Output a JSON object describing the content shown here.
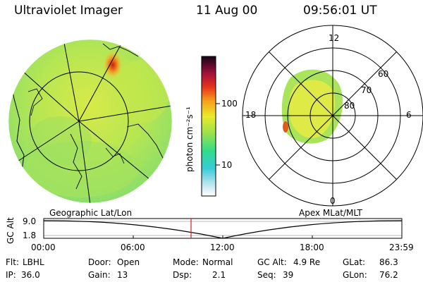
{
  "header": {
    "instrument": "Ultraviolet Imager",
    "date": "11 Aug 00",
    "time": "09:56:01 UT"
  },
  "colorbar": {
    "unit_label": "photon cm⁻²s⁻¹",
    "ticks": [
      "100",
      "10"
    ]
  },
  "left_panel": {
    "caption": "Geographic Lat/Lon"
  },
  "right_panel": {
    "caption": "Apex MLat/MLT",
    "mlt_labels": {
      "top": "12",
      "left": "18",
      "right": "6",
      "bottom": "0"
    },
    "lat_labels": [
      "60",
      "70",
      "80"
    ]
  },
  "altitude_strip": {
    "axis_label": "GC Alt",
    "y_ticks": [
      "9.0",
      "1.8"
    ],
    "time_ticks": [
      "00:00",
      "06:00",
      "12:00",
      "18:00",
      "23:59"
    ]
  },
  "params": {
    "flt_label": "Flt:",
    "flt_value": "LBHL",
    "ip_label": "IP:",
    "ip_value": "36.0",
    "door_label": "Door:",
    "door_value": "Open",
    "gain_label": "Gain:",
    "gain_value": "13",
    "mode_label": "Mode:",
    "mode_value": "Normal",
    "dsp_label": "Dsp:",
    "dsp_value": "2.1",
    "gcalt_label": "GC Alt:",
    "gcalt_value": "4.9 Re",
    "seq_label": "Seq:",
    "seq_value": "39",
    "glat_label": "GLat:",
    "glat_value": "86.3",
    "glon_label": "GLon:",
    "glon_value": "76.2"
  },
  "colors": {
    "aurora_green": "#a6e85a",
    "aurora_yellow": "#e7ee3a",
    "hotspot_red": "#e23a1a",
    "marker_red": "#d02020"
  }
}
